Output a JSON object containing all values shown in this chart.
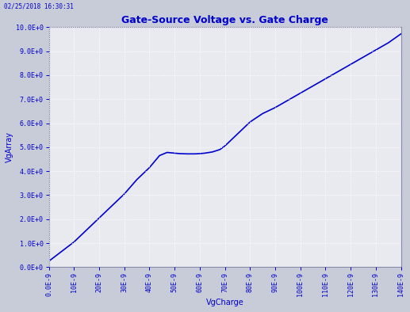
{
  "title": "Gate-Source Voltage vs. Gate Charge",
  "xlabel": "VgCharge",
  "ylabel": "VgArray",
  "timestamp": "02/25/2018 16:30:31",
  "line_color": "#0000CD",
  "bg_color": "#c8ccd8",
  "plot_bg_color": "#e8eaf0",
  "border_color": "#8888aa",
  "grid_color": "#ffffff",
  "xlim": [
    0,
    1.4e-07
  ],
  "ylim": [
    0,
    10
  ],
  "x_ticks": [
    0,
    1e-08,
    2e-08,
    3e-08,
    4e-08,
    5e-08,
    6e-08,
    7e-08,
    8e-08,
    9e-08,
    1e-07,
    1.1e-07,
    1.2e-07,
    1.3e-07,
    1.4e-07
  ],
  "x_tick_labels": [
    "0.0E-9",
    "10E-9",
    "20E-9",
    "30E-9",
    "40E-9",
    "50E-9",
    "60E-9",
    "70E-9",
    "80E-9",
    "90E-9",
    "100E-9",
    "110E-9",
    "120E-9",
    "130E-9",
    "140E-9"
  ],
  "y_ticks": [
    0,
    1,
    2,
    3,
    4,
    5,
    6,
    7,
    8,
    9,
    10
  ],
  "y_tick_labels": [
    "0.0E+0",
    "1.0E+0",
    "2.0E+0",
    "3.0E+0",
    "4.0E+0",
    "5.0E+0",
    "6.0E+0",
    "7.0E+0",
    "8.0E+0",
    "9.0E+0",
    "10.0E+0"
  ],
  "title_fontsize": 9,
  "label_fontsize": 7,
  "tick_fontsize": 6,
  "line_width": 1.2,
  "curve_x": [
    0,
    5e-09,
    1e-08,
    1.5e-08,
    2e-08,
    2.5e-08,
    3e-08,
    3.5e-08,
    4e-08,
    4.4e-08,
    4.7e-08,
    5e-08,
    5.2e-08,
    5.5e-08,
    5.8e-08,
    6e-08,
    6.2e-08,
    6.5e-08,
    6.8e-08,
    7e-08,
    7.5e-08,
    8e-08,
    8.5e-08,
    9e-08,
    9.5e-08,
    1e-07,
    1.05e-07,
    1.1e-07,
    1.15e-07,
    1.2e-07,
    1.25e-07,
    1.3e-07,
    1.35e-07,
    1.4e-07
  ],
  "curve_y": [
    0.25,
    0.65,
    1.05,
    1.55,
    2.05,
    2.55,
    3.05,
    3.65,
    4.15,
    4.65,
    4.78,
    4.75,
    4.73,
    4.72,
    4.72,
    4.73,
    4.75,
    4.8,
    4.9,
    5.05,
    5.55,
    6.05,
    6.4,
    6.65,
    6.95,
    7.25,
    7.55,
    7.85,
    8.15,
    8.45,
    8.75,
    9.05,
    9.35,
    9.72
  ]
}
